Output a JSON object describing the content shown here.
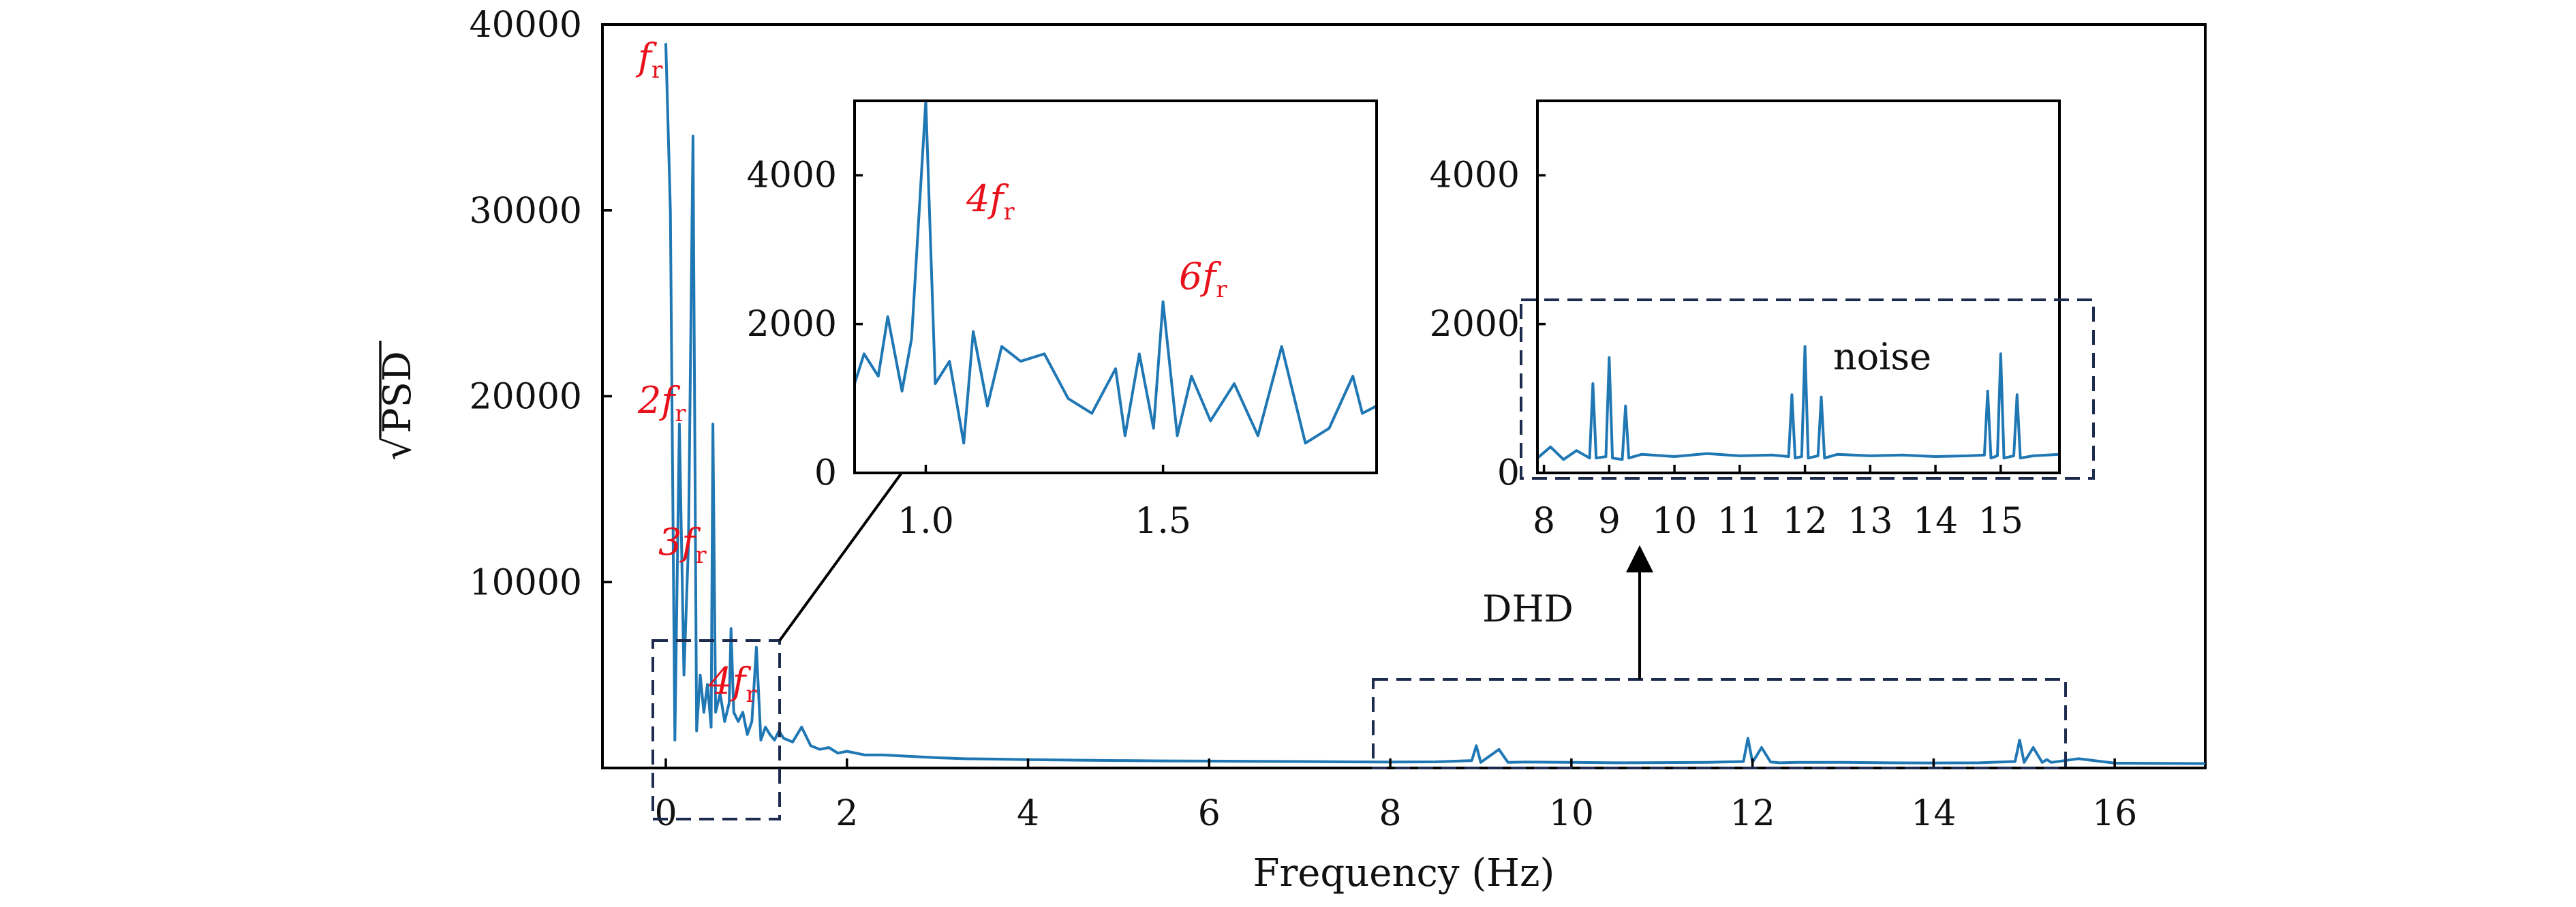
{
  "chart_data": [
    {
      "id": "main",
      "type": "line",
      "xlabel": "Frequency (Hz)",
      "ylabel_sqrt": "√",
      "ylabel_text": "PSD",
      "xlim": [
        -0.7,
        17
      ],
      "ylim": [
        0,
        40000
      ],
      "xticks": [
        0,
        2,
        4,
        6,
        8,
        10,
        12,
        14,
        16
      ],
      "yticks": [
        10000,
        20000,
        30000,
        40000
      ],
      "series": [
        {
          "x": [
            0.0,
            0.05,
            0.1,
            0.15,
            0.2,
            0.25,
            0.3,
            0.34,
            0.38,
            0.42,
            0.46,
            0.5,
            0.52,
            0.55,
            0.6,
            0.65,
            0.7,
            0.72,
            0.75,
            0.8,
            0.85,
            0.9,
            0.95,
            1.0,
            1.05,
            1.1,
            1.15,
            1.2,
            1.25,
            1.3,
            1.4,
            1.5,
            1.6,
            1.7,
            1.8,
            1.9,
            2.0,
            2.2,
            2.4,
            2.6,
            2.8,
            3.0,
            3.3,
            3.6,
            4.0,
            4.5,
            5.0,
            5.5,
            6.0,
            6.5,
            7.0,
            7.5,
            8.0,
            8.5,
            8.9,
            8.95,
            9.0,
            9.2,
            9.3,
            9.5,
            10.0,
            10.5,
            11.0,
            11.5,
            11.9,
            11.95,
            12.0,
            12.1,
            12.2,
            12.25,
            12.3,
            12.5,
            13.0,
            13.5,
            14.0,
            14.5,
            14.9,
            14.95,
            15.0,
            15.1,
            15.2,
            15.25,
            15.3,
            15.6,
            16.0,
            16.5,
            17.0
          ],
          "y": [
            39000,
            30000,
            1500,
            18500,
            5000,
            12000,
            34000,
            2000,
            5000,
            3000,
            4500,
            2200,
            18500,
            3000,
            4000,
            2500,
            3500,
            7500,
            3000,
            2500,
            3000,
            1800,
            2500,
            6500,
            1500,
            2200,
            1800,
            1500,
            2000,
            1600,
            1400,
            2200,
            1200,
            1000,
            1100,
            800,
            900,
            700,
            700,
            650,
            600,
            550,
            500,
            480,
            450,
            420,
            400,
            380,
            370,
            360,
            350,
            330,
            320,
            330,
            400,
            1200,
            300,
            1000,
            300,
            320,
            300,
            280,
            290,
            300,
            350,
            1600,
            300,
            1100,
            320,
            300,
            280,
            300,
            300,
            280,
            270,
            280,
            350,
            1500,
            300,
            1100,
            300,
            450,
            300,
            500,
            260,
            250,
            240
          ]
        }
      ],
      "annotations": [
        {
          "base": "f",
          "sub": "r"
        },
        {
          "base": "2f",
          "sub": "r"
        },
        {
          "base": "3f",
          "sub": "r"
        },
        {
          "base": "4f",
          "sub": "r"
        },
        {
          "text": "DHD"
        }
      ]
    },
    {
      "id": "inset_low",
      "type": "line",
      "xlim": [
        0.85,
        1.95
      ],
      "ylim": [
        0,
        5000
      ],
      "xticks": [
        1.0,
        1.5
      ],
      "yticks": [
        0,
        2000,
        4000
      ],
      "xtick_labels": [
        "1.0",
        "1.5"
      ],
      "series": [
        {
          "x": [
            0.85,
            0.87,
            0.9,
            0.92,
            0.95,
            0.97,
            1.0,
            1.02,
            1.05,
            1.08,
            1.1,
            1.13,
            1.16,
            1.2,
            1.25,
            1.3,
            1.35,
            1.4,
            1.42,
            1.45,
            1.48,
            1.5,
            1.53,
            1.56,
            1.6,
            1.65,
            1.7,
            1.75,
            1.8,
            1.85,
            1.9,
            1.92,
            1.95
          ],
          "y": [
            1200,
            1600,
            1300,
            2100,
            1100,
            1800,
            5200,
            1200,
            1500,
            400,
            1900,
            900,
            1700,
            1500,
            1600,
            1000,
            800,
            1400,
            500,
            1600,
            600,
            2300,
            500,
            1300,
            700,
            1200,
            500,
            1700,
            400,
            600,
            1300,
            800,
            900
          ]
        }
      ],
      "annotations": [
        {
          "base": "4f",
          "sub": "r"
        },
        {
          "base": "6f",
          "sub": "r"
        }
      ]
    },
    {
      "id": "inset_high",
      "type": "line",
      "xlim": [
        7.9,
        15.9
      ],
      "ylim": [
        0,
        5000
      ],
      "xticks": [
        8,
        9,
        10,
        11,
        12,
        13,
        14,
        15
      ],
      "yticks": [
        0,
        2000,
        4000
      ],
      "series": [
        {
          "x": [
            7.9,
            8.1,
            8.3,
            8.5,
            8.7,
            8.75,
            8.8,
            8.95,
            9.0,
            9.05,
            9.2,
            9.25,
            9.3,
            9.5,
            10.0,
            10.5,
            11.0,
            11.5,
            11.75,
            11.8,
            11.85,
            11.95,
            12.0,
            12.05,
            12.2,
            12.25,
            12.3,
            12.5,
            13.0,
            13.5,
            14.0,
            14.5,
            14.75,
            14.8,
            14.85,
            14.95,
            15.0,
            15.05,
            15.2,
            15.25,
            15.3,
            15.5,
            15.9
          ],
          "y": [
            200,
            350,
            180,
            300,
            200,
            1200,
            200,
            220,
            1550,
            200,
            180,
            900,
            200,
            250,
            220,
            260,
            230,
            240,
            220,
            1050,
            200,
            220,
            1700,
            200,
            230,
            1020,
            200,
            250,
            230,
            240,
            220,
            230,
            240,
            1100,
            200,
            230,
            1600,
            200,
            230,
            1050,
            200,
            230,
            250
          ]
        }
      ],
      "annotations": [
        {
          "text": "noise"
        }
      ]
    }
  ]
}
